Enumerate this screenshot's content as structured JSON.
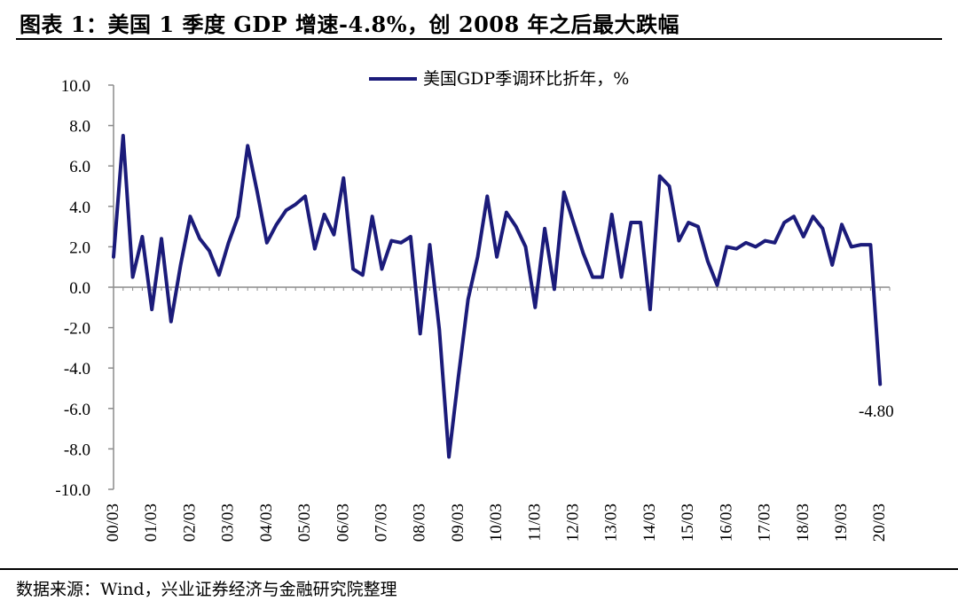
{
  "header": {
    "title": "图表 1：美国 1 季度 GDP 增速-4.8%，创 2008 年之后最大跌幅"
  },
  "footer": {
    "source": "数据来源：Wind，兴业证券经济与金融研究院整理"
  },
  "colors": {
    "line": "#1b1b7a",
    "axis": "#8c8c8c"
  },
  "chart_data": {
    "type": "line",
    "title": "美国 1 季度 GDP 增速-4.8%，创 2008 年之后最大跌幅",
    "xlabel": "",
    "ylabel": "",
    "ylim": [
      -10,
      10
    ],
    "yticks": [
      10,
      8,
      6,
      4,
      2,
      0,
      -2,
      -4,
      -6,
      -8,
      -10
    ],
    "ytick_labels": [
      "10.0",
      "8.0",
      "6.0",
      "4.0",
      "2.0",
      "0.0",
      "-2.0",
      "-4.0",
      "-6.0",
      "-8.0",
      "-10.0"
    ],
    "xtick_labels": [
      "00/03",
      "01/03",
      "02/03",
      "03/03",
      "04/03",
      "05/03",
      "06/03",
      "07/03",
      "08/03",
      "09/03",
      "10/03",
      "11/03",
      "12/03",
      "13/03",
      "14/03",
      "15/03",
      "16/03",
      "17/03",
      "18/03",
      "19/03",
      "20/03"
    ],
    "legend": "美国GDP季调环比折年，%",
    "legend_position": "top",
    "annotation": {
      "label": "-4.80",
      "value": -4.8
    },
    "series": [
      {
        "name": "美国GDP季调环比折年，%",
        "values": [
          1.5,
          7.5,
          0.5,
          2.5,
          -1.1,
          2.4,
          -1.7,
          1.1,
          3.5,
          2.4,
          1.8,
          0.6,
          2.2,
          3.5,
          7.0,
          4.7,
          2.2,
          3.1,
          3.8,
          4.1,
          4.5,
          1.9,
          3.6,
          2.6,
          5.4,
          0.9,
          0.6,
          3.5,
          0.9,
          2.3,
          2.2,
          2.5,
          -2.3,
          2.1,
          -2.1,
          -8.4,
          -4.4,
          -0.6,
          1.5,
          4.5,
          1.5,
          3.7,
          3.0,
          2.0,
          -1.0,
          2.9,
          -0.1,
          4.7,
          3.2,
          1.7,
          0.5,
          0.5,
          3.6,
          0.5,
          3.2,
          3.2,
          -1.1,
          5.5,
          5.0,
          2.3,
          3.2,
          3.0,
          1.3,
          0.1,
          2.0,
          1.9,
          2.2,
          2.0,
          2.3,
          2.2,
          3.2,
          3.5,
          2.5,
          3.5,
          2.9,
          1.1,
          3.1,
          2.0,
          2.1,
          2.1,
          -4.8
        ]
      }
    ]
  }
}
